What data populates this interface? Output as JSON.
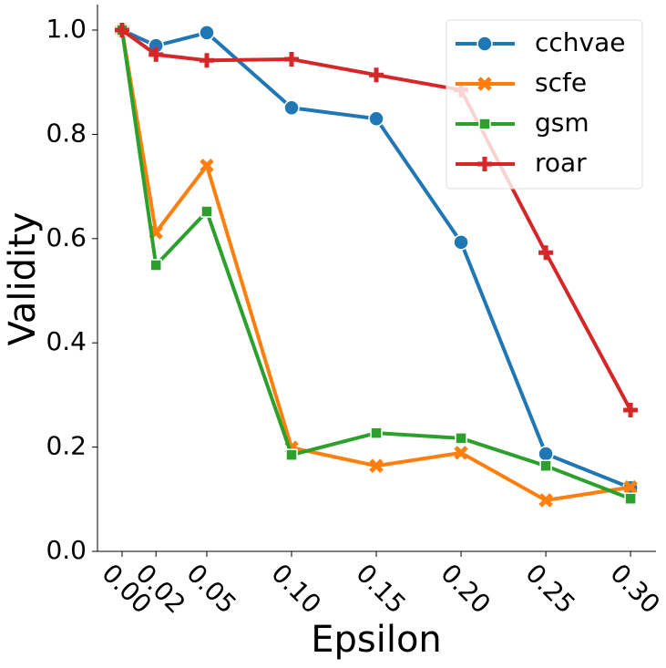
{
  "chart_data": {
    "type": "line",
    "x_label": "Epsilon",
    "y_label": "Validity",
    "x": [
      0,
      0.02,
      0.05,
      0.1,
      0.15,
      0.2,
      0.25,
      0.3
    ],
    "series": [
      {
        "name": "cchvae",
        "color": "#1f77b4",
        "marker": "circle",
        "values": [
          1.0,
          0.97,
          0.995,
          0.851,
          0.83,
          0.593,
          0.187,
          0.122
        ]
      },
      {
        "name": "scfe",
        "color": "#ff7f0e",
        "marker": "x",
        "values": [
          1.0,
          0.612,
          0.74,
          0.199,
          0.164,
          0.189,
          0.098,
          0.123
        ]
      },
      {
        "name": "gsm",
        "color": "#2ca02c",
        "marker": "square",
        "values": [
          1.0,
          0.549,
          0.652,
          0.185,
          0.227,
          0.217,
          0.164,
          0.101
        ]
      },
      {
        "name": "roar",
        "color": "#d62728",
        "marker": "plus",
        "values": [
          1.0,
          0.953,
          0.942,
          0.944,
          0.914,
          0.885,
          0.573,
          0.271
        ]
      }
    ],
    "xlim": [
      -0.0145,
      0.315
    ],
    "ylim": [
      0,
      1.049
    ],
    "xticks": [
      {
        "value": 0,
        "label": "0.00"
      },
      {
        "value": 0.02,
        "label": "0.02"
      },
      {
        "value": 0.05,
        "label": "0.05"
      },
      {
        "value": 0.1,
        "label": "0.10"
      },
      {
        "value": 0.15,
        "label": "0.15"
      },
      {
        "value": 0.2,
        "label": "0.20"
      },
      {
        "value": 0.25,
        "label": "0.25"
      },
      {
        "value": 0.3,
        "label": "0.30"
      }
    ],
    "yticks": [
      {
        "value": 0,
        "label": "0.0"
      },
      {
        "value": 0.2,
        "label": "0.2"
      },
      {
        "value": 0.4,
        "label": "0.4"
      },
      {
        "value": 0.6,
        "label": "0.6"
      },
      {
        "value": 0.8,
        "label": "0.8"
      },
      {
        "value": 1,
        "label": "1.0"
      }
    ],
    "legend": "upper right",
    "grid": false
  }
}
